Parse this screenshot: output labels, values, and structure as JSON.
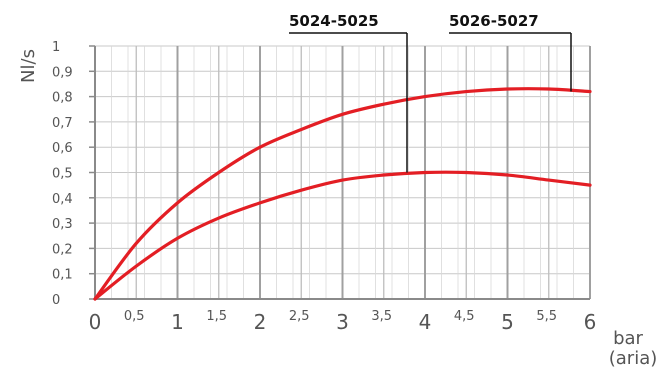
{
  "chart_data": {
    "type": "line",
    "title": "",
    "ylabel": "Nl/s",
    "xlabel": "bar",
    "xlabel_sub": "(aria)",
    "xlim": [
      0,
      6
    ],
    "ylim": [
      0,
      1
    ],
    "x_major_ticks": [
      "0",
      "1",
      "2",
      "3",
      "4",
      "5",
      "6"
    ],
    "x_minor_ticks": [
      "0,5",
      "1,5",
      "2,5",
      "3,5",
      "4,5",
      "5,5"
    ],
    "y_ticks": [
      "0",
      "0,1",
      "0,2",
      "0,3",
      "0,4",
      "0,5",
      "0,6",
      "0,7",
      "0,8",
      "0,9",
      "1"
    ],
    "grid": true,
    "line_color": "#e31e24",
    "series": [
      {
        "name": "5026-5027",
        "x": [
          0,
          0.5,
          1,
          1.5,
          2,
          2.5,
          3,
          3.5,
          4,
          4.5,
          5,
          5.5,
          6
        ],
        "values": [
          0,
          0.22,
          0.38,
          0.5,
          0.6,
          0.67,
          0.73,
          0.77,
          0.8,
          0.82,
          0.83,
          0.83,
          0.82
        ]
      },
      {
        "name": "5024-5025",
        "x": [
          0,
          0.5,
          1,
          1.5,
          2,
          2.5,
          3,
          3.5,
          4,
          4.5,
          5,
          5.5,
          6
        ],
        "values": [
          0,
          0.13,
          0.24,
          0.32,
          0.38,
          0.43,
          0.47,
          0.49,
          0.5,
          0.5,
          0.49,
          0.47,
          0.45
        ]
      }
    ]
  }
}
